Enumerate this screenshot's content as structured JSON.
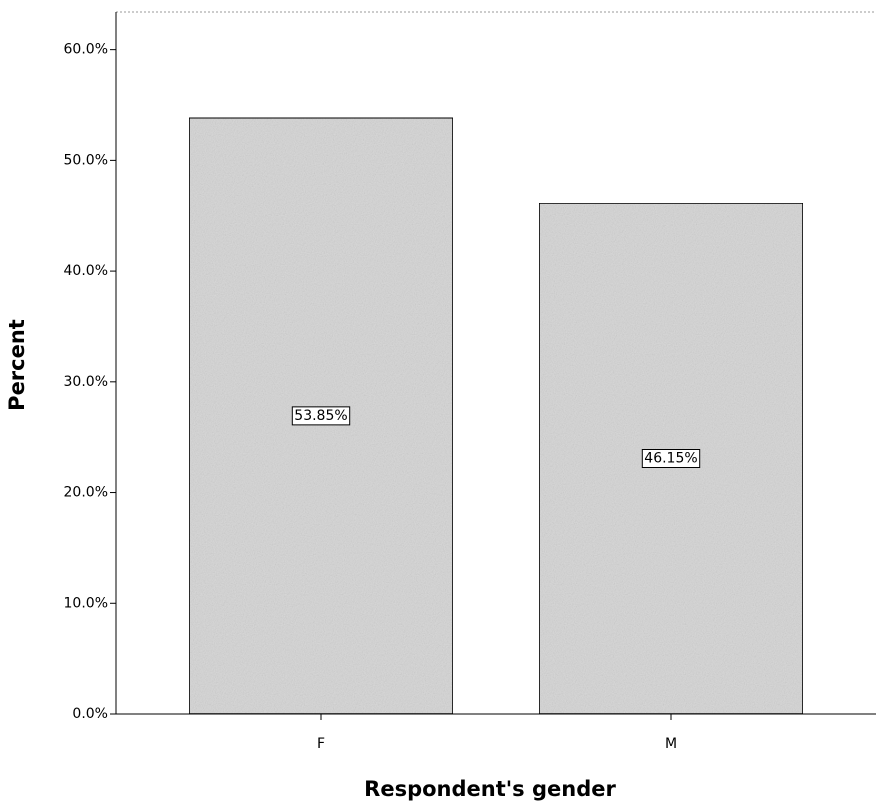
{
  "chart_data": {
    "type": "bar",
    "categories": [
      "F",
      "M"
    ],
    "values": [
      53.85,
      46.15
    ],
    "value_labels": [
      "53.85%",
      "46.15%"
    ],
    "color": "#d9d9d9",
    "xlabel": "Respondent's gender",
    "ylabel": "Percent",
    "ylim": [
      0,
      63.4
    ],
    "yticks": [
      {
        "value": 0,
        "label": "0.0%"
      },
      {
        "value": 10,
        "label": "10.0%"
      },
      {
        "value": 20,
        "label": "20.0%"
      },
      {
        "value": 30,
        "label": "30.0%"
      },
      {
        "value": 40,
        "label": "40.0%"
      },
      {
        "value": 50,
        "label": "50.0%"
      },
      {
        "value": 60,
        "label": "60.0%"
      }
    ],
    "grid": false
  }
}
